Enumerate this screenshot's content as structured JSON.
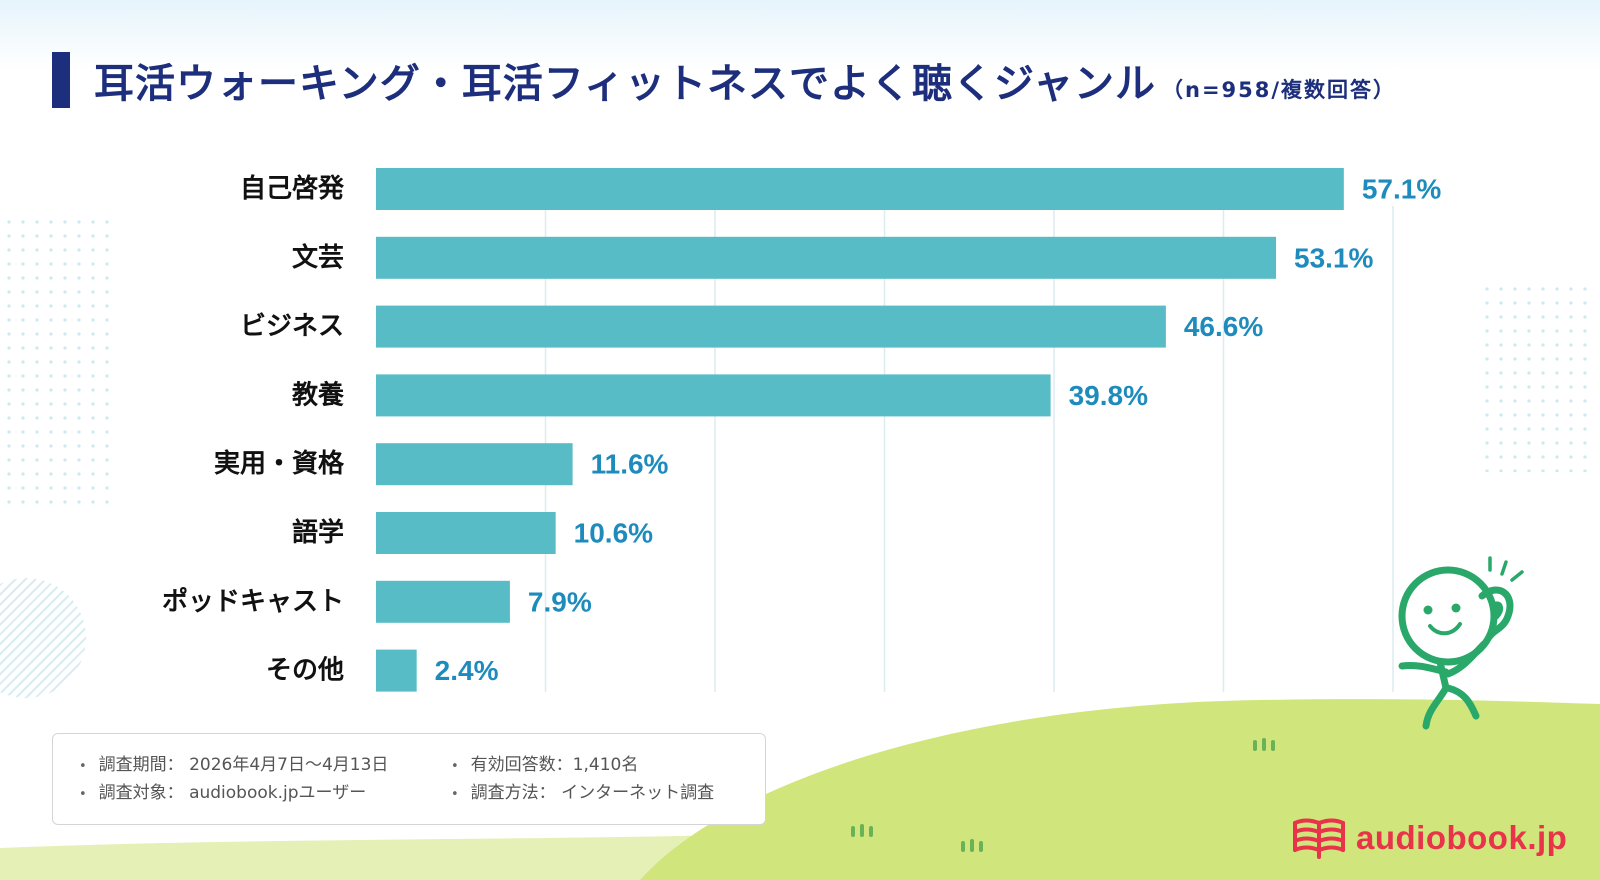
{
  "header": {
    "title": "耳活ウォーキング・耳活フィットネスでよく聴くジャンル",
    "subtitle": "（n=958/複数回答）"
  },
  "colors": {
    "bar": "#58bcc7",
    "value_text": "#1e8bbd",
    "title": "#1d2f7c",
    "hill": "#d0e67c",
    "hill_light": "#e5f0b7",
    "character": "#2aa86a",
    "brand": "#e8334a"
  },
  "chart_data": {
    "type": "bar",
    "orientation": "horizontal",
    "title": "耳活ウォーキング・耳活フィットネスでよく聴くジャンル",
    "categories": [
      "自己啓発",
      "文芸",
      "ビジネス",
      "教養",
      "実用・資格",
      "語学",
      "ポッドキャスト",
      "その他"
    ],
    "values": [
      57.1,
      53.1,
      46.6,
      39.8,
      11.6,
      10.6,
      7.9,
      2.4
    ],
    "value_labels": [
      "57.1%",
      "53.1%",
      "46.6%",
      "39.8%",
      "11.6%",
      "10.6%",
      "7.9%",
      "2.4%"
    ],
    "unit": "%",
    "xlim": [
      0,
      60
    ],
    "grid_step": 10,
    "grid": true,
    "legend": "none"
  },
  "notes": {
    "col1": [
      "調査期間： 2026年4月7日～4月13日",
      "調査対象： audiobook.jpユーザー"
    ],
    "col2": [
      "有効回答数：1,410名",
      "調査方法： インターネット調査"
    ]
  },
  "brand": {
    "logo_text": "audiobook.jp",
    "logo_icon": "book-stack-icon"
  }
}
